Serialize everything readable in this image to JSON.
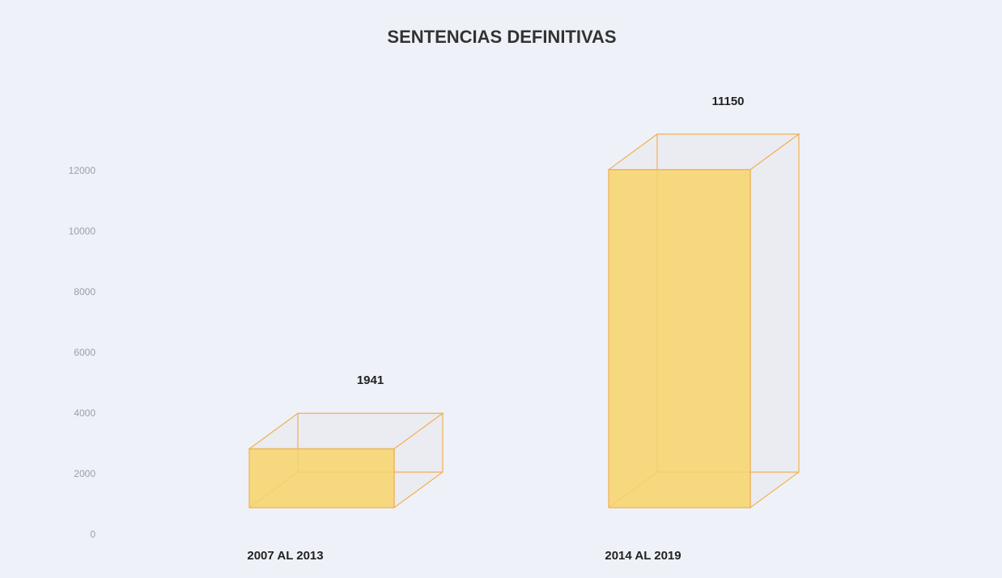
{
  "chart_data": {
    "type": "bar3d",
    "title": "SENTENCIAS DEFINITIVAS",
    "categories": [
      "2007 AL 2013",
      "2014 AL 2019"
    ],
    "values": [
      1941,
      11150
    ],
    "color": "#f7d36a",
    "ylim": [
      0,
      12000
    ],
    "yticks": [
      0,
      2000,
      4000,
      6000,
      8000,
      10000,
      12000
    ]
  }
}
